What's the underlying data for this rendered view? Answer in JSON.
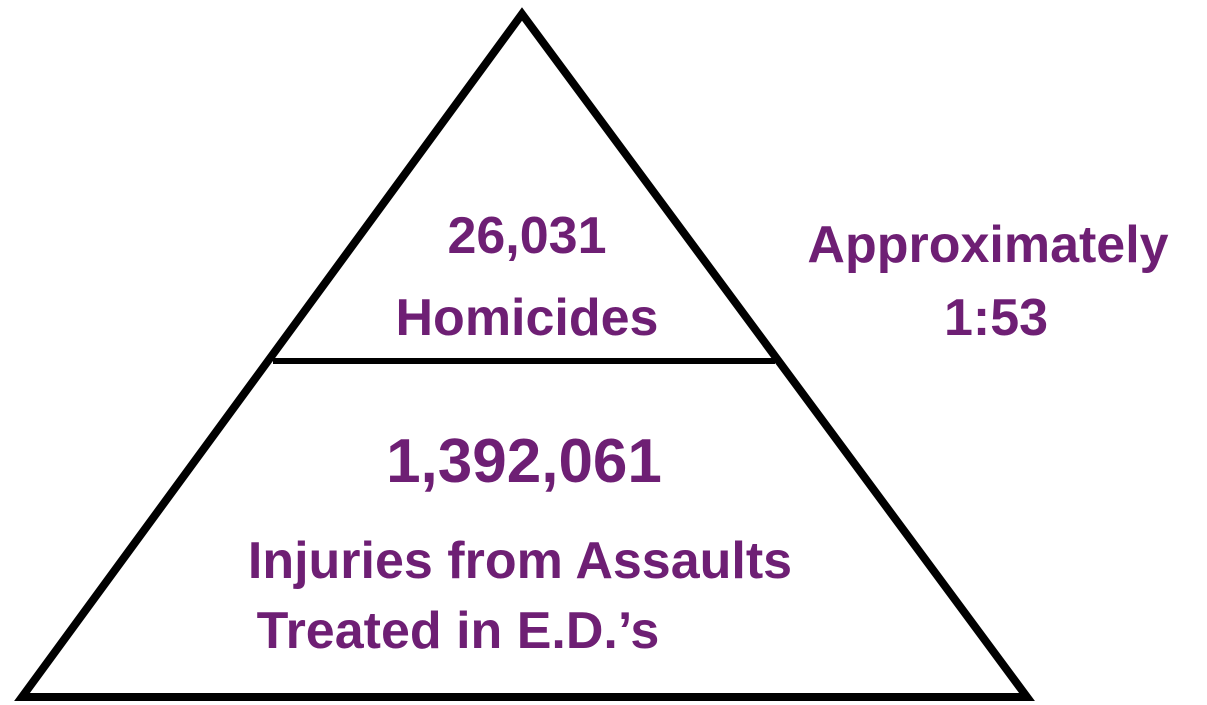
{
  "pyramid": {
    "top": {
      "value": "26,031",
      "label": "Homicides"
    },
    "bottom": {
      "value": "1,392,061",
      "label_lines": [
        "Injuries from Assaults",
        "Treated in E.D.’s"
      ]
    }
  },
  "side_note": {
    "lines": [
      "Approximately",
      "1:53"
    ]
  }
}
